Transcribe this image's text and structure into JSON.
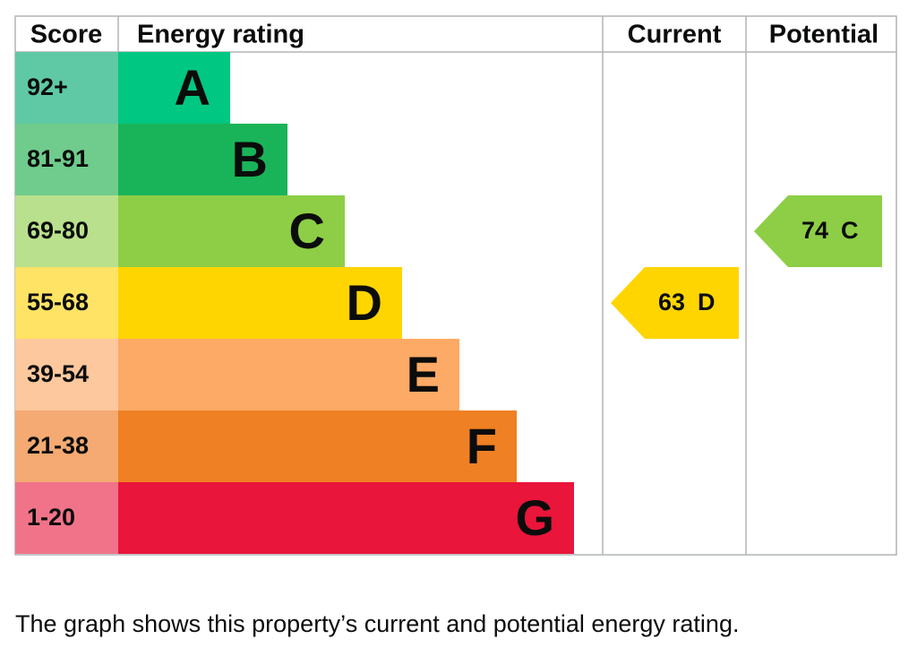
{
  "header": {
    "score": "Score",
    "rating": "Energy rating",
    "current": "Current",
    "potential": "Potential"
  },
  "bands": [
    {
      "score": "92+",
      "letter": "A",
      "color": "#00c781",
      "score_color": "#5fc9a5"
    },
    {
      "score": "81-91",
      "letter": "B",
      "color": "#19b459",
      "score_color": "#6fcc8c"
    },
    {
      "score": "69-80",
      "letter": "C",
      "color": "#8dce46",
      "score_color": "#b9e08c"
    },
    {
      "score": "55-68",
      "letter": "D",
      "color": "#ffd500",
      "score_color": "#ffe365"
    },
    {
      "score": "39-54",
      "letter": "E",
      "color": "#fcaa65",
      "score_color": "#fdc89d"
    },
    {
      "score": "21-38",
      "letter": "F",
      "color": "#ef8023",
      "score_color": "#f4aa72"
    },
    {
      "score": "1-20",
      "letter": "G",
      "color": "#e9153b",
      "score_color": "#f07389"
    }
  ],
  "current": {
    "value": 63,
    "letter": "D"
  },
  "potential": {
    "value": 74,
    "letter": "C"
  },
  "caption": "The graph shows this property’s current and potential energy rating."
}
